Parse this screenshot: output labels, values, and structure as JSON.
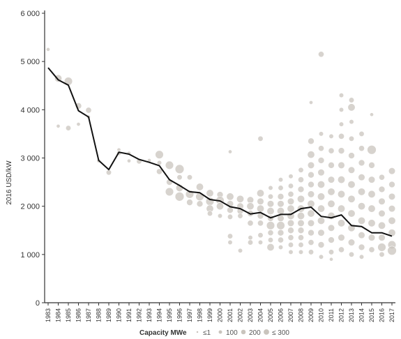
{
  "chart_data": {
    "type": "scatter",
    "ylabel": "2016 USD/kW",
    "ylim": [
      0,
      6000
    ],
    "yticks": [
      0,
      1000,
      2000,
      3000,
      4000,
      5000,
      6000
    ],
    "ytick_labels": [
      "0",
      "1 000",
      "2 000",
      "3 000",
      "4 000",
      "5 000",
      "6 000"
    ],
    "categories": [
      "1983",
      "1984",
      "1985",
      "1986",
      "1987",
      "1988",
      "1989",
      "1990",
      "1991",
      "1992",
      "1993",
      "1994",
      "1995",
      "1996",
      "1997",
      "1998",
      "1999",
      "2000",
      "2001",
      "2002",
      "2003",
      "2004",
      "2005",
      "2006",
      "2007",
      "2008",
      "2009",
      "2010",
      "2011",
      "2012",
      "2013",
      "2014",
      "2015",
      "2016",
      "2017"
    ],
    "series": [
      {
        "kind": "line",
        "values": [
          4870,
          4620,
          4510,
          3980,
          3850,
          2950,
          2760,
          3120,
          3080,
          2970,
          2910,
          2840,
          2550,
          2430,
          2300,
          2280,
          2140,
          2110,
          1990,
          1950,
          1840,
          1870,
          1760,
          1830,
          1830,
          1950,
          1980,
          1790,
          1760,
          1820,
          1600,
          1580,
          1450,
          1450,
          1380
        ]
      }
    ],
    "projects": [
      {
        "x": "1983",
        "y": 5250,
        "c": 20
      },
      {
        "x": "1984",
        "y": 4650,
        "c": 150
      },
      {
        "x": "1984",
        "y": 3660,
        "c": 20
      },
      {
        "x": "1985",
        "y": 4590,
        "c": 200
      },
      {
        "x": "1985",
        "y": 3620,
        "c": 60
      },
      {
        "x": "1986",
        "y": 4080,
        "c": 100
      },
      {
        "x": "1986",
        "y": 3700,
        "c": 20
      },
      {
        "x": "1987",
        "y": 3990,
        "c": 80
      },
      {
        "x": "1987",
        "y": 3850,
        "c": 20
      },
      {
        "x": "1988",
        "y": 2940,
        "c": 20
      },
      {
        "x": "1989",
        "y": 2700,
        "c": 60
      },
      {
        "x": "1990",
        "y": 3170,
        "c": 20
      },
      {
        "x": "1990",
        "y": 3100,
        "c": 40
      },
      {
        "x": "1991",
        "y": 3100,
        "c": 20
      },
      {
        "x": "1991",
        "y": 2940,
        "c": 20
      },
      {
        "x": "1992",
        "y": 2930,
        "c": 60
      },
      {
        "x": "1993",
        "y": 2950,
        "c": 20
      },
      {
        "x": "1994",
        "y": 3070,
        "c": 200
      },
      {
        "x": "1994",
        "y": 2720,
        "c": 80
      },
      {
        "x": "1994",
        "y": 2900,
        "c": 40
      },
      {
        "x": "1995",
        "y": 2850,
        "c": 200
      },
      {
        "x": "1995",
        "y": 2300,
        "c": 200
      },
      {
        "x": "1995",
        "y": 2500,
        "c": 100
      },
      {
        "x": "1996",
        "y": 2770,
        "c": 250
      },
      {
        "x": "1996",
        "y": 2200,
        "c": 250
      },
      {
        "x": "1996",
        "y": 2380,
        "c": 150
      },
      {
        "x": "1996",
        "y": 2600,
        "c": 60
      },
      {
        "x": "1997",
        "y": 2600,
        "c": 60
      },
      {
        "x": "1997",
        "y": 2250,
        "c": 200
      },
      {
        "x": "1997",
        "y": 2080,
        "c": 100
      },
      {
        "x": "1998",
        "y": 2400,
        "c": 150
      },
      {
        "x": "1998",
        "y": 2200,
        "c": 200
      },
      {
        "x": "1998",
        "y": 2050,
        "c": 100
      },
      {
        "x": "1999",
        "y": 2270,
        "c": 150
      },
      {
        "x": "1999",
        "y": 2100,
        "c": 200
      },
      {
        "x": "1999",
        "y": 1950,
        "c": 150
      },
      {
        "x": "1999",
        "y": 1850,
        "c": 60
      },
      {
        "x": "2000",
        "y": 2240,
        "c": 100
      },
      {
        "x": "2000",
        "y": 2120,
        "c": 200
      },
      {
        "x": "2000",
        "y": 2000,
        "c": 150
      },
      {
        "x": "2000",
        "y": 1800,
        "c": 40
      },
      {
        "x": "2001",
        "y": 3130,
        "c": 20
      },
      {
        "x": "2001",
        "y": 2200,
        "c": 150
      },
      {
        "x": "2001",
        "y": 2050,
        "c": 120
      },
      {
        "x": "2001",
        "y": 1920,
        "c": 100
      },
      {
        "x": "2001",
        "y": 1780,
        "c": 60
      },
      {
        "x": "2001",
        "y": 1380,
        "c": 60
      },
      {
        "x": "2001",
        "y": 1250,
        "c": 40
      },
      {
        "x": "2002",
        "y": 2150,
        "c": 150
      },
      {
        "x": "2002",
        "y": 2000,
        "c": 120
      },
      {
        "x": "2002",
        "y": 1900,
        "c": 100
      },
      {
        "x": "2002",
        "y": 1800,
        "c": 60
      },
      {
        "x": "2002",
        "y": 1080,
        "c": 40
      },
      {
        "x": "2003",
        "y": 2130,
        "c": 120
      },
      {
        "x": "2003",
        "y": 2000,
        "c": 150
      },
      {
        "x": "2003",
        "y": 1850,
        "c": 100
      },
      {
        "x": "2003",
        "y": 1650,
        "c": 80
      },
      {
        "x": "2003",
        "y": 1350,
        "c": 40
      },
      {
        "x": "2003",
        "y": 1250,
        "c": 60
      },
      {
        "x": "2004",
        "y": 3400,
        "c": 60
      },
      {
        "x": "2004",
        "y": 2270,
        "c": 150
      },
      {
        "x": "2004",
        "y": 2100,
        "c": 120
      },
      {
        "x": "2004",
        "y": 1950,
        "c": 150
      },
      {
        "x": "2004",
        "y": 1800,
        "c": 100
      },
      {
        "x": "2004",
        "y": 1650,
        "c": 80
      },
      {
        "x": "2004",
        "y": 1400,
        "c": 60
      },
      {
        "x": "2004",
        "y": 1250,
        "c": 40
      },
      {
        "x": "2005",
        "y": 2380,
        "c": 40
      },
      {
        "x": "2005",
        "y": 2200,
        "c": 60
      },
      {
        "x": "2005",
        "y": 2050,
        "c": 120
      },
      {
        "x": "2005",
        "y": 1900,
        "c": 150
      },
      {
        "x": "2005",
        "y": 1750,
        "c": 100
      },
      {
        "x": "2005",
        "y": 1600,
        "c": 200
      },
      {
        "x": "2005",
        "y": 1450,
        "c": 80
      },
      {
        "x": "2005",
        "y": 1300,
        "c": 60
      },
      {
        "x": "2005",
        "y": 1150,
        "c": 150
      },
      {
        "x": "2006",
        "y": 2550,
        "c": 40
      },
      {
        "x": "2006",
        "y": 2380,
        "c": 60
      },
      {
        "x": "2006",
        "y": 2200,
        "c": 100
      },
      {
        "x": "2006",
        "y": 2050,
        "c": 120
      },
      {
        "x": "2006",
        "y": 1900,
        "c": 150
      },
      {
        "x": "2006",
        "y": 1750,
        "c": 120
      },
      {
        "x": "2006",
        "y": 1600,
        "c": 200
      },
      {
        "x": "2006",
        "y": 1450,
        "c": 100
      },
      {
        "x": "2006",
        "y": 1300,
        "c": 80
      },
      {
        "x": "2006",
        "y": 1150,
        "c": 40
      },
      {
        "x": "2007",
        "y": 2620,
        "c": 40
      },
      {
        "x": "2007",
        "y": 2420,
        "c": 60
      },
      {
        "x": "2007",
        "y": 2250,
        "c": 80
      },
      {
        "x": "2007",
        "y": 2100,
        "c": 120
      },
      {
        "x": "2007",
        "y": 1950,
        "c": 150
      },
      {
        "x": "2007",
        "y": 1800,
        "c": 150
      },
      {
        "x": "2007",
        "y": 1650,
        "c": 120
      },
      {
        "x": "2007",
        "y": 1500,
        "c": 100
      },
      {
        "x": "2007",
        "y": 1350,
        "c": 80
      },
      {
        "x": "2007",
        "y": 1200,
        "c": 60
      },
      {
        "x": "2007",
        "y": 1050,
        "c": 40
      },
      {
        "x": "2008",
        "y": 2750,
        "c": 60
      },
      {
        "x": "2008",
        "y": 2550,
        "c": 80
      },
      {
        "x": "2008",
        "y": 2350,
        "c": 100
      },
      {
        "x": "2008",
        "y": 2150,
        "c": 150
      },
      {
        "x": "2008",
        "y": 1950,
        "c": 150
      },
      {
        "x": "2008",
        "y": 1800,
        "c": 150
      },
      {
        "x": "2008",
        "y": 1650,
        "c": 120
      },
      {
        "x": "2008",
        "y": 1500,
        "c": 100
      },
      {
        "x": "2008",
        "y": 1350,
        "c": 80
      },
      {
        "x": "2008",
        "y": 1200,
        "c": 60
      },
      {
        "x": "2008",
        "y": 1050,
        "c": 40
      },
      {
        "x": "2009",
        "y": 4150,
        "c": 20
      },
      {
        "x": "2009",
        "y": 3350,
        "c": 100
      },
      {
        "x": "2009",
        "y": 3070,
        "c": 150
      },
      {
        "x": "2009",
        "y": 2850,
        "c": 120
      },
      {
        "x": "2009",
        "y": 2650,
        "c": 100
      },
      {
        "x": "2009",
        "y": 2450,
        "c": 100
      },
      {
        "x": "2009",
        "y": 2250,
        "c": 120
      },
      {
        "x": "2009",
        "y": 2050,
        "c": 150
      },
      {
        "x": "2009",
        "y": 1850,
        "c": 150
      },
      {
        "x": "2009",
        "y": 1650,
        "c": 120
      },
      {
        "x": "2009",
        "y": 1450,
        "c": 100
      },
      {
        "x": "2009",
        "y": 1250,
        "c": 80
      },
      {
        "x": "2009",
        "y": 1050,
        "c": 60
      },
      {
        "x": "2010",
        "y": 5150,
        "c": 80
      },
      {
        "x": "2010",
        "y": 3500,
        "c": 40
      },
      {
        "x": "2010",
        "y": 3200,
        "c": 80
      },
      {
        "x": "2010",
        "y": 2950,
        "c": 100
      },
      {
        "x": "2010",
        "y": 2700,
        "c": 120
      },
      {
        "x": "2010",
        "y": 2450,
        "c": 150
      },
      {
        "x": "2010",
        "y": 2200,
        "c": 150
      },
      {
        "x": "2010",
        "y": 1950,
        "c": 150
      },
      {
        "x": "2010",
        "y": 1700,
        "c": 150
      },
      {
        "x": "2010",
        "y": 1450,
        "c": 120
      },
      {
        "x": "2010",
        "y": 1200,
        "c": 100
      },
      {
        "x": "2010",
        "y": 950,
        "c": 40
      },
      {
        "x": "2011",
        "y": 3450,
        "c": 40
      },
      {
        "x": "2011",
        "y": 3150,
        "c": 80
      },
      {
        "x": "2011",
        "y": 2850,
        "c": 100
      },
      {
        "x": "2011",
        "y": 2550,
        "c": 120
      },
      {
        "x": "2011",
        "y": 2300,
        "c": 150
      },
      {
        "x": "2011",
        "y": 2050,
        "c": 150
      },
      {
        "x": "2011",
        "y": 1800,
        "c": 150
      },
      {
        "x": "2011",
        "y": 1550,
        "c": 120
      },
      {
        "x": "2011",
        "y": 1300,
        "c": 100
      },
      {
        "x": "2011",
        "y": 1050,
        "c": 60
      },
      {
        "x": "2011",
        "y": 900,
        "c": 20
      },
      {
        "x": "2012",
        "y": 4300,
        "c": 40
      },
      {
        "x": "2012",
        "y": 4000,
        "c": 40
      },
      {
        "x": "2012",
        "y": 3700,
        "c": 40
      },
      {
        "x": "2012",
        "y": 3450,
        "c": 80
      },
      {
        "x": "2012",
        "y": 3150,
        "c": 100
      },
      {
        "x": "2012",
        "y": 2850,
        "c": 120
      },
      {
        "x": "2012",
        "y": 2550,
        "c": 150
      },
      {
        "x": "2012",
        "y": 2250,
        "c": 150
      },
      {
        "x": "2012",
        "y": 1950,
        "c": 150
      },
      {
        "x": "2012",
        "y": 1650,
        "c": 150
      },
      {
        "x": "2012",
        "y": 1350,
        "c": 120
      },
      {
        "x": "2012",
        "y": 1100,
        "c": 80
      },
      {
        "x": "2013",
        "y": 4200,
        "c": 60
      },
      {
        "x": "2013",
        "y": 4050,
        "c": 150
      },
      {
        "x": "2013",
        "y": 3750,
        "c": 40
      },
      {
        "x": "2013",
        "y": 3400,
        "c": 60
      },
      {
        "x": "2013",
        "y": 3050,
        "c": 100
      },
      {
        "x": "2013",
        "y": 2750,
        "c": 120
      },
      {
        "x": "2013",
        "y": 2450,
        "c": 150
      },
      {
        "x": "2013",
        "y": 2150,
        "c": 150
      },
      {
        "x": "2013",
        "y": 1850,
        "c": 150
      },
      {
        "x": "2013",
        "y": 1550,
        "c": 150
      },
      {
        "x": "2013",
        "y": 1250,
        "c": 120
      },
      {
        "x": "2013",
        "y": 1000,
        "c": 60
      },
      {
        "x": "2014",
        "y": 3500,
        "c": 60
      },
      {
        "x": "2014",
        "y": 3200,
        "c": 80
      },
      {
        "x": "2014",
        "y": 2900,
        "c": 100
      },
      {
        "x": "2014",
        "y": 2600,
        "c": 120
      },
      {
        "x": "2014",
        "y": 2300,
        "c": 150
      },
      {
        "x": "2014",
        "y": 2000,
        "c": 150
      },
      {
        "x": "2014",
        "y": 1700,
        "c": 150
      },
      {
        "x": "2014",
        "y": 1400,
        "c": 120
      },
      {
        "x": "2014",
        "y": 1150,
        "c": 100
      },
      {
        "x": "2014",
        "y": 950,
        "c": 40
      },
      {
        "x": "2015",
        "y": 3900,
        "c": 20
      },
      {
        "x": "2015",
        "y": 3170,
        "c": 250
      },
      {
        "x": "2015",
        "y": 2850,
        "c": 100
      },
      {
        "x": "2015",
        "y": 2550,
        "c": 120
      },
      {
        "x": "2015",
        "y": 2250,
        "c": 150
      },
      {
        "x": "2015",
        "y": 1950,
        "c": 150
      },
      {
        "x": "2015",
        "y": 1650,
        "c": 150
      },
      {
        "x": "2015",
        "y": 1350,
        "c": 120
      },
      {
        "x": "2015",
        "y": 1100,
        "c": 80
      },
      {
        "x": "2016",
        "y": 2600,
        "c": 80
      },
      {
        "x": "2016",
        "y": 2350,
        "c": 100
      },
      {
        "x": "2016",
        "y": 2100,
        "c": 120
      },
      {
        "x": "2016",
        "y": 1850,
        "c": 120
      },
      {
        "x": "2016",
        "y": 1600,
        "c": 150
      },
      {
        "x": "2016",
        "y": 1350,
        "c": 120
      },
      {
        "x": "2016",
        "y": 1150,
        "c": 200
      },
      {
        "x": "2016",
        "y": 1000,
        "c": 60
      },
      {
        "x": "2017",
        "y": 2730,
        "c": 120
      },
      {
        "x": "2017",
        "y": 2450,
        "c": 100
      },
      {
        "x": "2017",
        "y": 2200,
        "c": 120
      },
      {
        "x": "2017",
        "y": 1950,
        "c": 120
      },
      {
        "x": "2017",
        "y": 1700,
        "c": 150
      },
      {
        "x": "2017",
        "y": 1450,
        "c": 150
      },
      {
        "x": "2017",
        "y": 1200,
        "c": 200
      },
      {
        "x": "2017",
        "y": 1080,
        "c": 250
      }
    ],
    "legend": {
      "title": "Capacity MWe",
      "items": [
        {
          "label": "≤1",
          "capacity": 1
        },
        {
          "label": "100",
          "capacity": 100
        },
        {
          "label": "200",
          "capacity": 200
        },
        {
          "label": "≤ 300",
          "capacity": 300
        }
      ]
    },
    "colors": {
      "line": "#111111",
      "bubble_fill": "#c9c4bd",
      "bubble_stroke": "#ffffff",
      "axis": "#333333"
    }
  }
}
